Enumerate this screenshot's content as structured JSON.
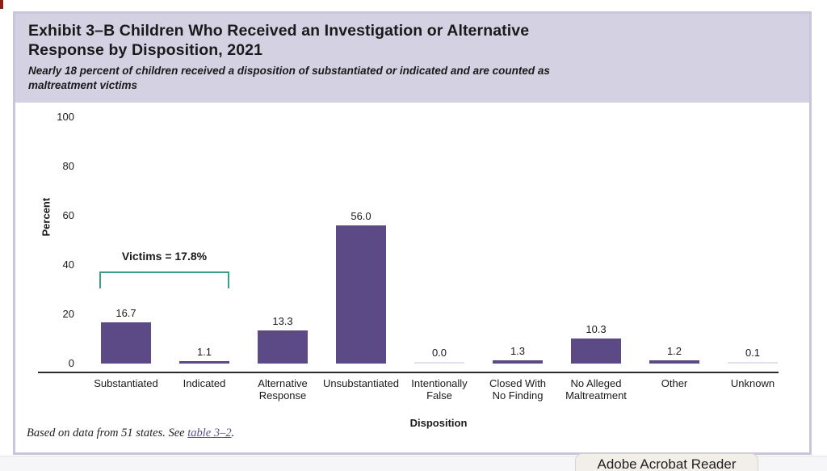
{
  "page": {
    "corner_mark_color": "#8c1d18"
  },
  "exhibit": {
    "title_line1": "Exhibit 3–B Children Who Received an Investigation or Alternative",
    "title_line2": "Response by Disposition, 2021",
    "subtitle_line1": "Nearly 18 percent of children received a disposition of substantiated or indicated and are counted as",
    "subtitle_line2": "maltreatment victims",
    "header_bg": "#d4d1e3",
    "border_color": "#c9c5db"
  },
  "chart_data": {
    "type": "bar",
    "title": "Exhibit 3–B Children Who Received an Investigation or Alternative Response by Disposition, 2021",
    "categories": [
      "Substantiated",
      "Indicated",
      "Alternative\nResponse",
      "Unsubstantiated",
      "Intentionally\nFalse",
      "Closed With\nNo Finding",
      "No Alleged\nMaltreatment",
      "Other",
      "Unknown"
    ],
    "values": [
      16.7,
      1.1,
      13.3,
      56.0,
      0.0,
      1.3,
      10.3,
      1.2,
      0.1
    ],
    "value_labels": [
      "16.7",
      "1.1",
      "13.3",
      "56.0",
      "0.0",
      "1.3",
      "10.3",
      "1.2",
      "0.1"
    ],
    "xlabel": "Disposition",
    "ylabel": "Percent",
    "ylim": [
      0,
      100
    ],
    "yticks": [
      0,
      20,
      40,
      60,
      80,
      100
    ],
    "grid": false,
    "legend": null,
    "bar_color": "#5c4a87",
    "faint_bar_color": "#e2e0ea",
    "axis_color": "#2b2b2b",
    "annotation": {
      "text": "Victims = 17.8%",
      "value": 17.8,
      "spans": [
        "Substantiated",
        "Indicated"
      ],
      "bracket_color": "#3f9d8b"
    }
  },
  "footnote": {
    "prefix": "Based on data from 51 states. See ",
    "link": "table 3–2",
    "suffix": "."
  },
  "overlay": {
    "acrobat_label": "Adobe Acrobat Reader"
  }
}
